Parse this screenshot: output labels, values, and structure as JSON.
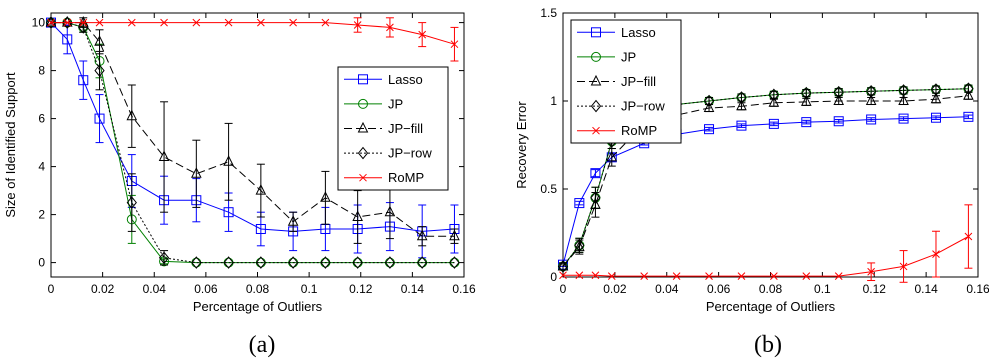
{
  "chart_data": [
    {
      "type": "line",
      "caption": "(a)",
      "xlabel": "Percentage of Outliers",
      "ylabel": "Size of Identified Support",
      "xlim": [
        0,
        0.16
      ],
      "ylim": [
        -0.6,
        10.4
      ],
      "xticks": [
        "0",
        "0.02",
        "0.04",
        "0.06",
        "0.08",
        "0.1",
        "0.12",
        "0.14",
        "0.16"
      ],
      "yticks": [
        "0",
        "2",
        "4",
        "6",
        "8",
        "10"
      ],
      "legend_position": "right",
      "x": [
        0.0,
        0.0063,
        0.0125,
        0.0188,
        0.0313,
        0.0438,
        0.0563,
        0.0688,
        0.0813,
        0.0938,
        0.1063,
        0.1188,
        0.1313,
        0.1438,
        0.1563
      ],
      "series": [
        {
          "name": "Lasso",
          "color": "#0000ff",
          "dash": "solid",
          "marker": "square",
          "values": [
            10,
            9.3,
            7.6,
            6.0,
            3.4,
            2.6,
            2.6,
            2.1,
            1.4,
            1.3,
            1.4,
            1.4,
            1.5,
            1.3,
            1.4
          ],
          "errors": [
            0,
            0.6,
            0.8,
            1.0,
            1.1,
            1.0,
            0.9,
            0.8,
            0.7,
            0.8,
            0.9,
            1.0,
            1.0,
            1.1,
            1.0
          ]
        },
        {
          "name": "JP",
          "color": "#008000",
          "dash": "solid",
          "marker": "circle",
          "values": [
            10,
            10,
            9.8,
            8.4,
            1.8,
            0.05,
            0,
            0,
            0,
            0,
            0,
            0,
            0,
            0,
            0
          ],
          "errors": [
            0,
            0,
            0.2,
            0.7,
            1.0,
            0.1,
            0,
            0,
            0,
            0,
            0,
            0,
            0,
            0,
            0
          ]
        },
        {
          "name": "JP−fill",
          "color": "#000000",
          "dash": "dashed",
          "marker": "triangle",
          "values": [
            10,
            10,
            10,
            9.2,
            6.1,
            4.4,
            3.7,
            4.2,
            3.0,
            1.7,
            2.7,
            1.9,
            2.1,
            1.1,
            1.1
          ],
          "errors": [
            0,
            0,
            0.2,
            0.5,
            1.3,
            2.3,
            1.4,
            1.6,
            1.1,
            0.4,
            1.1,
            1.1,
            1.1,
            0.4,
            0.3
          ]
        },
        {
          "name": "JP−row",
          "color": "#000000",
          "dash": "dotted",
          "marker": "diamond",
          "values": [
            10,
            10,
            9.8,
            8.0,
            2.5,
            0.2,
            0,
            0,
            0,
            0,
            0,
            0,
            0,
            0,
            0
          ],
          "errors": [
            0,
            0,
            0.2,
            0.8,
            1.2,
            0.3,
            0,
            0,
            0,
            0,
            0,
            0,
            0,
            0,
            0
          ]
        },
        {
          "name": "RoMP",
          "color": "#ff0000",
          "dash": "solid",
          "marker": "x",
          "values": [
            10,
            10,
            10,
            10,
            10,
            10,
            10,
            10,
            10,
            10,
            10,
            9.9,
            9.8,
            9.5,
            9.1
          ],
          "errors": [
            0,
            0,
            0,
            0,
            0,
            0,
            0,
            0,
            0,
            0,
            0,
            0.3,
            0.4,
            0.5,
            0.7
          ]
        }
      ]
    },
    {
      "type": "line",
      "caption": "(b)",
      "xlabel": "Percentage of Outliers",
      "ylabel": "Recovery Error",
      "xlim": [
        0,
        0.16
      ],
      "ylim": [
        0,
        1.5
      ],
      "xticks": [
        "0",
        "0.02",
        "0.04",
        "0.06",
        "0.08",
        "0.1",
        "0.12",
        "0.14",
        "0.16"
      ],
      "yticks": [
        "0",
        "0.5",
        "1",
        "1.5"
      ],
      "legend_position": "top-left",
      "x": [
        0.0,
        0.0063,
        0.0125,
        0.0188,
        0.0313,
        0.0438,
        0.0563,
        0.0688,
        0.0813,
        0.0938,
        0.1063,
        0.1188,
        0.1313,
        0.1438,
        0.1563
      ],
      "series": [
        {
          "name": "Lasso",
          "color": "#0000ff",
          "dash": "solid",
          "marker": "square",
          "values": [
            0.07,
            0.42,
            0.59,
            0.68,
            0.76,
            0.81,
            0.84,
            0.86,
            0.87,
            0.88,
            0.885,
            0.895,
            0.9,
            0.905,
            0.91
          ],
          "errors": [
            0.01,
            0.01,
            0.02,
            0.02,
            0.01,
            0.01,
            0.01,
            0.01,
            0.01,
            0.01,
            0.01,
            0.01,
            0.01,
            0.01,
            0.01
          ]
        },
        {
          "name": "JP",
          "color": "#008000",
          "dash": "solid",
          "marker": "circle",
          "values": [
            0.06,
            0.18,
            0.45,
            0.77,
            0.94,
            0.98,
            1.0,
            1.02,
            1.035,
            1.045,
            1.05,
            1.055,
            1.06,
            1.065,
            1.07
          ],
          "errors": [
            0.02,
            0.04,
            0.06,
            0.04,
            0.03,
            0.02,
            0.02,
            0.02,
            0.02,
            0.02,
            0.02,
            0.02,
            0.02,
            0.02,
            0.02
          ]
        },
        {
          "name": "JP−fill",
          "color": "#000000",
          "dash": "dashed",
          "marker": "triangle",
          "values": [
            0.06,
            0.17,
            0.41,
            0.68,
            0.87,
            0.92,
            0.96,
            0.97,
            0.99,
            0.995,
            1.0,
            1.0,
            1.0,
            1.01,
            1.03
          ],
          "errors": [
            0.02,
            0.04,
            0.07,
            0.05,
            0.04,
            0.03,
            0.02,
            0.02,
            0.02,
            0.02,
            0.02,
            0.02,
            0.02,
            0.02,
            0.02
          ]
        },
        {
          "name": "JP−row",
          "color": "#000000",
          "dash": "dotted",
          "marker": "diamond",
          "values": [
            0.06,
            0.18,
            0.45,
            0.77,
            0.93,
            0.98,
            1.0,
            1.02,
            1.035,
            1.045,
            1.05,
            1.055,
            1.06,
            1.065,
            1.07
          ],
          "errors": [
            0.02,
            0.04,
            0.06,
            0.04,
            0.03,
            0.02,
            0.02,
            0.02,
            0.02,
            0.02,
            0.02,
            0.02,
            0.02,
            0.02,
            0.02
          ]
        },
        {
          "name": "RoMP",
          "color": "#ff0000",
          "dash": "solid",
          "marker": "x",
          "values": [
            0.01,
            0.01,
            0.01,
            0.005,
            0.005,
            0.005,
            0.005,
            0.005,
            0.005,
            0.005,
            0.005,
            0.03,
            0.06,
            0.13,
            0.23
          ],
          "errors": [
            0,
            0,
            0,
            0,
            0,
            0,
            0,
            0,
            0,
            0,
            0,
            0.05,
            0.09,
            0.13,
            0.18
          ]
        }
      ]
    }
  ]
}
